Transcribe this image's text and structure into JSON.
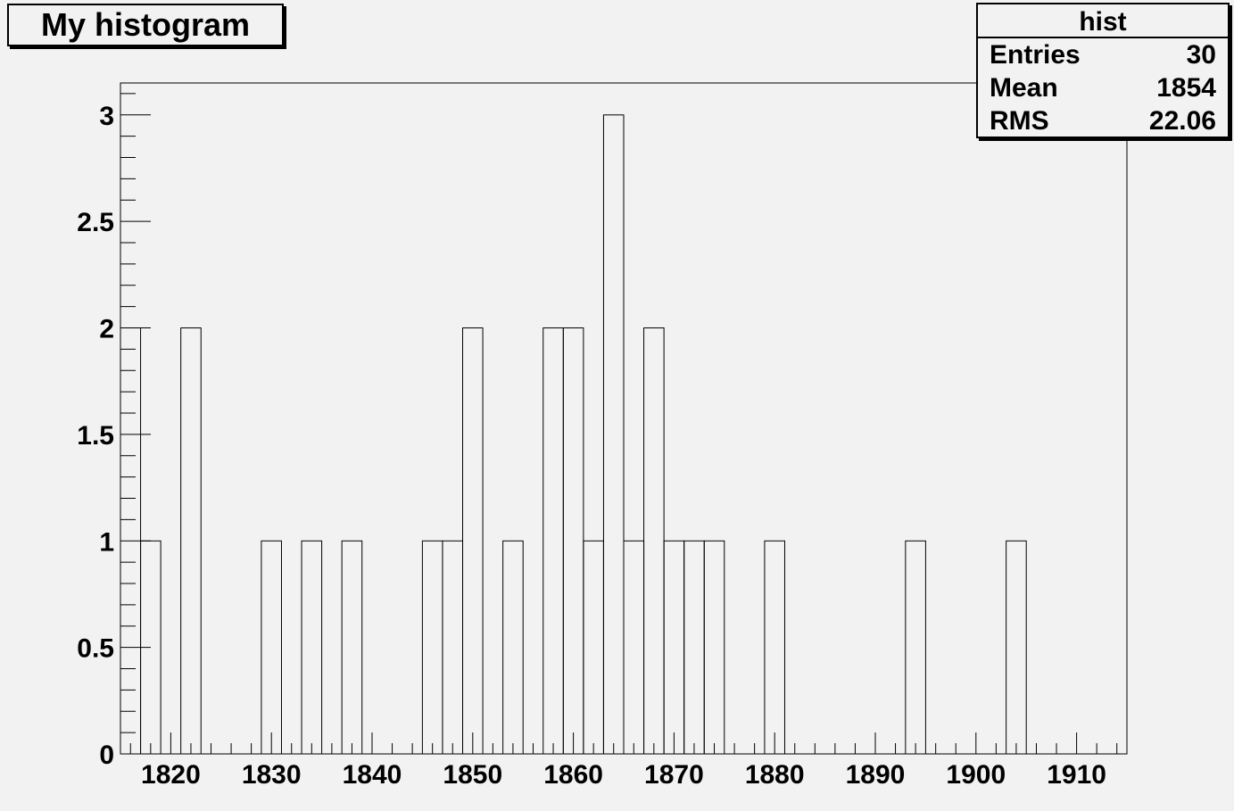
{
  "chart_data": {
    "type": "bar",
    "title": "My histogram",
    "xlabel": "",
    "ylabel": "",
    "xlim": [
      1815,
      1915
    ],
    "ylim": [
      0,
      3.15
    ],
    "bin_width": 2,
    "x_ticks": [
      "1820",
      "1830",
      "1840",
      "1850",
      "1860",
      "1870",
      "1880",
      "1890",
      "1900",
      "1910"
    ],
    "y_ticks": [
      "0",
      "0.5",
      "1",
      "1.5",
      "2",
      "2.5",
      "3"
    ],
    "bin_edges": [
      1815,
      1817,
      1819,
      1821,
      1823,
      1825,
      1827,
      1829,
      1831,
      1833,
      1835,
      1837,
      1839,
      1841,
      1843,
      1845,
      1847,
      1849,
      1851,
      1853,
      1855,
      1857,
      1859,
      1861,
      1863,
      1865,
      1867,
      1869,
      1871,
      1873,
      1875,
      1877,
      1879,
      1881,
      1883,
      1885,
      1887,
      1889,
      1891,
      1893,
      1895,
      1897,
      1899,
      1901,
      1903,
      1905,
      1907,
      1909,
      1911,
      1913,
      1915
    ],
    "values": [
      2,
      1,
      0,
      2,
      0,
      0,
      0,
      1,
      0,
      1,
      0,
      1,
      0,
      0,
      0,
      1,
      1,
      2,
      0,
      1,
      0,
      2,
      2,
      1,
      3,
      1,
      2,
      1,
      1,
      1,
      0,
      0,
      1,
      0,
      0,
      0,
      0,
      0,
      0,
      1,
      0,
      0,
      0,
      0,
      1,
      0,
      0,
      0,
      0,
      0
    ]
  },
  "stats": {
    "name": "hist",
    "entries_label": "Entries",
    "entries_value": "30",
    "mean_label": "Mean",
    "mean_value": "1854",
    "rms_label": "RMS",
    "rms_value": "22.06"
  },
  "colors": {
    "background": "#f2f2f2",
    "line": "#000000"
  }
}
